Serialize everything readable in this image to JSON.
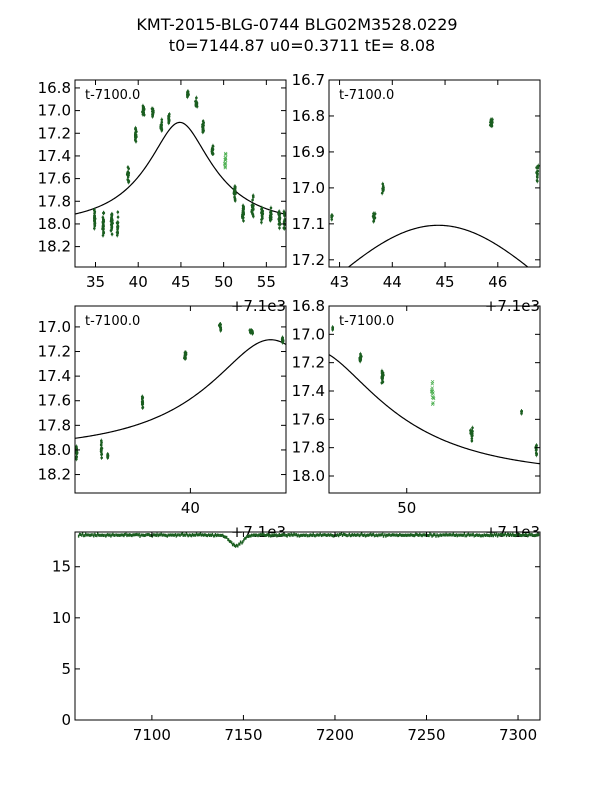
{
  "title_line1": "KMT-2015-BLG-0744 BLG02M3528.0229",
  "title_line2": "t0=7144.87 u0=0.3711 tE=   8.08",
  "colors": {
    "data": "#1b5e20",
    "model": "#000000",
    "axes": "#000000"
  },
  "chart_data": [
    {
      "id": "top-left",
      "type": "scatter",
      "panel_label": "t-7100.0",
      "x_offset_label": "+7.1e3",
      "xlim": [
        7132.6,
        7157.3
      ],
      "ylim": [
        18.38,
        16.73
      ],
      "xticks": [
        7135,
        7140,
        7145,
        7150,
        7155
      ],
      "xtick_labels": [
        "35",
        "40",
        "45",
        "50",
        "55"
      ],
      "yticks": [
        16.8,
        17.0,
        17.2,
        17.4,
        17.6,
        17.8,
        18.0,
        18.2
      ],
      "ytick_labels": [
        "16.8",
        "17.0",
        "17.2",
        "17.4",
        "17.6",
        "17.8",
        "18.0",
        "18.2"
      ],
      "model": true,
      "clusters": [
        {
          "x": 7134.9,
          "y": 17.95,
          "spread": 0.12,
          "dx": 0.12,
          "n": 28
        },
        {
          "x": 7135.9,
          "y": 18.0,
          "spread": 0.14,
          "dx": 0.12,
          "n": 28
        },
        {
          "x": 7136.9,
          "y": 18.0,
          "spread": 0.13,
          "dx": 0.12,
          "n": 28
        },
        {
          "x": 7137.6,
          "y": 17.98,
          "spread": 0.15,
          "dx": 0.12,
          "n": 22
        },
        {
          "x": 7138.8,
          "y": 17.58,
          "spread": 0.1,
          "dx": 0.15,
          "n": 18
        },
        {
          "x": 7139.7,
          "y": 17.23,
          "spread": 0.08,
          "dx": 0.12,
          "n": 18
        },
        {
          "x": 7140.6,
          "y": 17.0,
          "spread": 0.06,
          "dx": 0.15,
          "n": 18
        },
        {
          "x": 7141.7,
          "y": 17.02,
          "spread": 0.06,
          "dx": 0.15,
          "n": 18
        },
        {
          "x": 7142.7,
          "y": 17.14,
          "spread": 0.07,
          "dx": 0.12,
          "n": 18
        },
        {
          "x": 7143.6,
          "y": 17.08,
          "spread": 0.06,
          "dx": 0.12,
          "n": 18
        },
        {
          "x": 7145.8,
          "y": 16.85,
          "spread": 0.05,
          "dx": 0.12,
          "n": 16
        },
        {
          "x": 7146.8,
          "y": 16.93,
          "spread": 0.07,
          "dx": 0.12,
          "n": 18
        },
        {
          "x": 7147.6,
          "y": 17.15,
          "spread": 0.08,
          "dx": 0.12,
          "n": 18
        },
        {
          "x": 7148.7,
          "y": 17.35,
          "spread": 0.08,
          "dx": 0.12,
          "n": 16
        },
        {
          "x": 7150.2,
          "y": 17.45,
          "spread": 0.1,
          "dx": 0.15,
          "n": 12,
          "marker": "x"
        },
        {
          "x": 7151.3,
          "y": 17.72,
          "spread": 0.1,
          "dx": 0.15,
          "n": 22
        },
        {
          "x": 7152.3,
          "y": 17.9,
          "spread": 0.1,
          "dx": 0.15,
          "n": 22
        },
        {
          "x": 7153.4,
          "y": 17.85,
          "spread": 0.12,
          "dx": 0.15,
          "n": 22
        },
        {
          "x": 7154.5,
          "y": 17.9,
          "spread": 0.1,
          "dx": 0.15,
          "n": 22
        },
        {
          "x": 7155.5,
          "y": 17.92,
          "spread": 0.1,
          "dx": 0.15,
          "n": 22
        },
        {
          "x": 7156.5,
          "y": 17.95,
          "spread": 0.12,
          "dx": 0.15,
          "n": 22
        },
        {
          "x": 7157.1,
          "y": 17.95,
          "spread": 0.12,
          "dx": 0.12,
          "n": 12
        }
      ]
    },
    {
      "id": "top-right",
      "type": "scatter",
      "panel_label": "t-7100.0",
      "x_offset_label": "+7.1e3",
      "xlim": [
        7142.8,
        7146.8
      ],
      "ylim": [
        17.22,
        16.7
      ],
      "xticks": [
        7143,
        7144,
        7145,
        7146
      ],
      "xtick_labels": [
        "43",
        "44",
        "45",
        "46"
      ],
      "yticks": [
        16.7,
        16.8,
        16.9,
        17.0,
        17.1,
        17.2
      ],
      "ytick_labels": [
        "16.7",
        "16.8",
        "16.9",
        "17.0",
        "17.1",
        "17.2"
      ],
      "model": true,
      "clusters": [
        {
          "x": 7142.85,
          "y": 17.08,
          "spread": 0.02,
          "dx": 0.02,
          "n": 6
        },
        {
          "x": 7143.65,
          "y": 17.08,
          "spread": 0.02,
          "dx": 0.03,
          "n": 14
        },
        {
          "x": 7143.82,
          "y": 17.0,
          "spread": 0.02,
          "dx": 0.03,
          "n": 10
        },
        {
          "x": 7145.88,
          "y": 16.82,
          "spread": 0.02,
          "dx": 0.04,
          "n": 16
        },
        {
          "x": 7146.75,
          "y": 16.96,
          "spread": 0.04,
          "dx": 0.03,
          "n": 12
        }
      ]
    },
    {
      "id": "middle-left",
      "type": "scatter",
      "panel_label": "t-7100.0",
      "x_offset_label": "+7.1e3",
      "xlim": [
        7133.0,
        7145.8
      ],
      "ylim": [
        18.35,
        16.83
      ],
      "xticks": [
        7140
      ],
      "xtick_labels": [
        "40"
      ],
      "yticks": [
        17.0,
        17.2,
        17.4,
        17.6,
        17.8,
        18.0,
        18.2
      ],
      "ytick_labels": [
        "17.0",
        "17.2",
        "17.4",
        "17.6",
        "17.8",
        "18.0",
        "18.2"
      ],
      "model": true,
      "clusters": [
        {
          "x": 7133.1,
          "y": 18.02,
          "spread": 0.08,
          "dx": 0.05,
          "n": 14
        },
        {
          "x": 7134.6,
          "y": 18.0,
          "spread": 0.12,
          "dx": 0.06,
          "n": 14
        },
        {
          "x": 7135.0,
          "y": 18.05,
          "spread": 0.04,
          "dx": 0.05,
          "n": 8
        },
        {
          "x": 7137.1,
          "y": 17.6,
          "spread": 0.08,
          "dx": 0.06,
          "n": 16
        },
        {
          "x": 7139.7,
          "y": 17.22,
          "spread": 0.06,
          "dx": 0.08,
          "n": 16
        },
        {
          "x": 7141.8,
          "y": 17.0,
          "spread": 0.04,
          "dx": 0.08,
          "n": 14
        },
        {
          "x": 7143.7,
          "y": 17.04,
          "spread": 0.03,
          "dx": 0.12,
          "n": 16
        },
        {
          "x": 7145.6,
          "y": 17.1,
          "spread": 0.04,
          "dx": 0.08,
          "n": 14
        }
      ]
    },
    {
      "id": "middle-right",
      "type": "scatter",
      "panel_label": "t-7100.0",
      "x_offset_label": "+7.1e3",
      "xlim": [
        7145.8,
        7157.2
      ],
      "ylim": [
        18.12,
        16.8
      ],
      "xticks": [
        7150
      ],
      "xtick_labels": [
        "50"
      ],
      "yticks": [
        16.8,
        17.0,
        17.2,
        17.4,
        17.6,
        17.8,
        18.0
      ],
      "ytick_labels": [
        "16.8",
        "17.0",
        "17.2",
        "17.4",
        "17.6",
        "17.8",
        "18.0"
      ],
      "model": true,
      "clusters": [
        {
          "x": 7146.0,
          "y": 16.95,
          "spread": 0.02,
          "dx": 0.02,
          "n": 5
        },
        {
          "x": 7147.5,
          "y": 17.17,
          "spread": 0.04,
          "dx": 0.06,
          "n": 16
        },
        {
          "x": 7148.7,
          "y": 17.3,
          "spread": 0.08,
          "dx": 0.08,
          "n": 16
        },
        {
          "x": 7151.4,
          "y": 17.42,
          "spread": 0.1,
          "dx": 0.08,
          "n": 14,
          "marker": "x"
        },
        {
          "x": 7153.5,
          "y": 17.7,
          "spread": 0.08,
          "dx": 0.08,
          "n": 16
        },
        {
          "x": 7156.2,
          "y": 17.55,
          "spread": 0.03,
          "dx": 0.02,
          "n": 5
        },
        {
          "x": 7157.0,
          "y": 17.82,
          "spread": 0.06,
          "dx": 0.05,
          "n": 12
        }
      ]
    },
    {
      "id": "bottom",
      "type": "scatter",
      "panel_label": "",
      "x_offset_label": "",
      "xlim": [
        7058,
        7312
      ],
      "ylim": [
        0,
        18.4
      ],
      "xticks": [
        7100,
        7150,
        7200,
        7250,
        7300
      ],
      "xtick_labels": [
        "7100",
        "7150",
        "7200",
        "7250",
        "7300"
      ],
      "yticks": [
        0,
        5,
        10,
        15
      ],
      "ytick_labels": [
        "0",
        "5",
        "10",
        "15"
      ],
      "model": false,
      "baseline_mag": 18.1,
      "bump": {
        "x": 7146,
        "mag": 17.05,
        "width": 4.5
      }
    }
  ]
}
